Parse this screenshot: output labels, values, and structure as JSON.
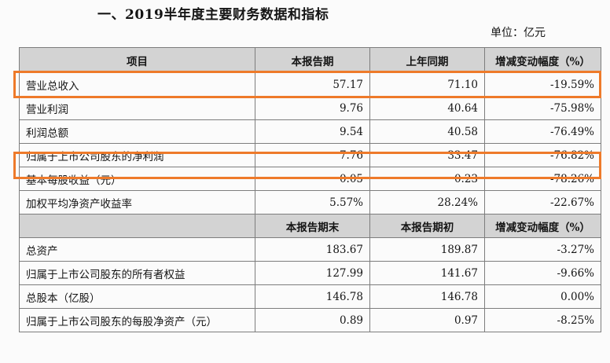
{
  "title": "一、2019半年度主要财务数据和指标",
  "unit": "单位：亿元",
  "header1": [
    "项目",
    "本报告期",
    "上年同期",
    "增减变动幅度（%）"
  ],
  "rows1": [
    [
      "营业总收入",
      "57.17",
      "71.10",
      "-19.59%"
    ],
    [
      "营业利润",
      "9.76",
      "40.64",
      "-75.98%"
    ],
    [
      "利润总额",
      "9.54",
      "40.58",
      "-76.49%"
    ],
    [
      "归属于上市公司股东的净利润",
      "7.76",
      "33.47",
      "-76.82%"
    ],
    [
      "基本每股收益（元）",
      "0.05",
      "0.23",
      "-78.26%"
    ],
    [
      "加权平均净资产收益率",
      "5.57%",
      "28.24%",
      "-22.67%"
    ]
  ],
  "header2": [
    "",
    "本报告期末",
    "本报告期初",
    "增减变动幅度（%）"
  ],
  "rows2": [
    [
      "总资产",
      "183.67",
      "189.87",
      "-3.27%"
    ],
    [
      "归属于上市公司股东的所有者权益",
      "127.99",
      "141.67",
      "-9.66%"
    ],
    [
      "总股本（亿股）",
      "146.78",
      "146.78",
      "0.00%"
    ],
    [
      "归属于上市公司股东的每股净资产（元）",
      "0.89",
      "0.97",
      "-8.25%"
    ]
  ],
  "highlight_color": "#ee7a2a"
}
